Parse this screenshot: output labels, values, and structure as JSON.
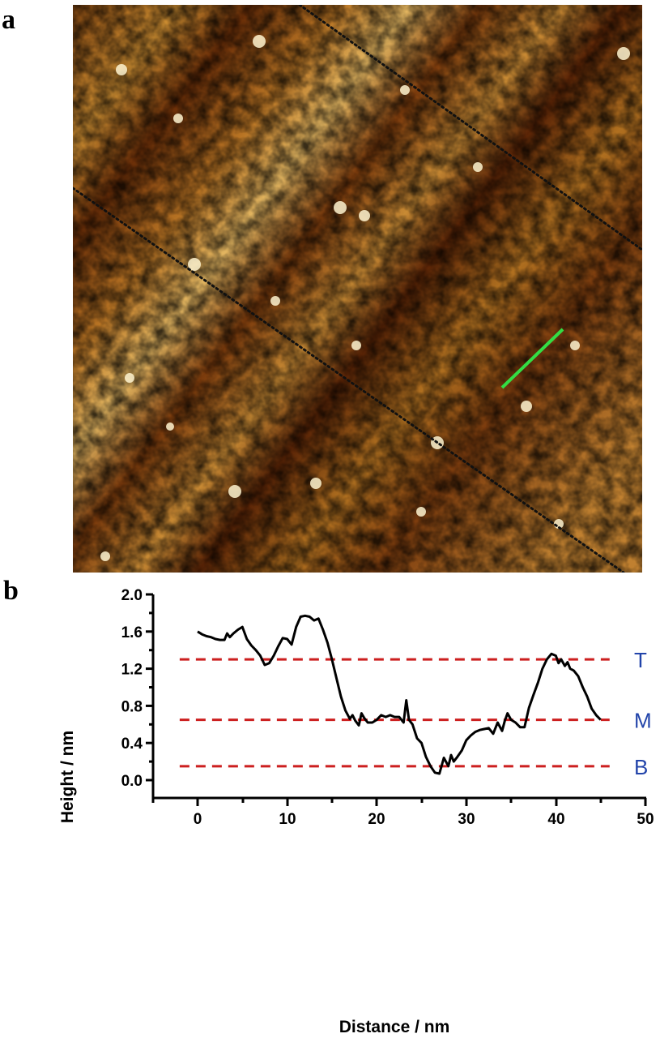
{
  "panels": {
    "a": {
      "label": "a",
      "image_description": "AFM height image, brown-gold colormap, with two dotted diagonal lines and a short green line-profile marker",
      "colormap": [
        "#3a1200",
        "#7a3a0a",
        "#b8741e",
        "#e0b050",
        "#fff2c8"
      ],
      "profile_line_color": "#33dd44",
      "dotted_line_color": "#111111"
    },
    "b": {
      "label": "b"
    }
  },
  "chart_data": {
    "type": "line",
    "title": "",
    "xlabel": "Distance / nm",
    "ylabel": "Height / nm",
    "xlim": [
      -5,
      50
    ],
    "ylim": [
      -0.1,
      2.0
    ],
    "xticks": [
      0,
      10,
      20,
      30,
      40,
      50
    ],
    "xtick_labels": [
      "0",
      "10",
      "20",
      "30",
      "40",
      "50"
    ],
    "yticks": [
      0.0,
      0.4,
      0.8,
      1.2,
      1.6,
      2.0
    ],
    "ytick_labels": [
      "0.0",
      "0.4",
      "0.8",
      "1.2",
      "1.6",
      "2.0"
    ],
    "grid": false,
    "legend": null,
    "series": [
      {
        "name": "height profile",
        "color": "#000000",
        "x": [
          0,
          0.5,
          1,
          1.5,
          2,
          2.5,
          3,
          3.3,
          3.6,
          4,
          4.5,
          5,
          5.5,
          6,
          6.5,
          7,
          7.5,
          8,
          8.5,
          9,
          9.5,
          10,
          10.5,
          11,
          11.5,
          12,
          12.5,
          13,
          13.5,
          14,
          14.5,
          15,
          15.5,
          16,
          16.5,
          17,
          17.3,
          17.6,
          18,
          18.3,
          18.6,
          19,
          19.5,
          20,
          20.5,
          21,
          21.5,
          22,
          22.5,
          23,
          23.3,
          23.6,
          24,
          24.5,
          25,
          25.5,
          26,
          26.5,
          27,
          27.5,
          28,
          28.3,
          28.6,
          29,
          29.5,
          30,
          30.5,
          31,
          31.5,
          32,
          32.5,
          33,
          33.5,
          34,
          34.3,
          34.6,
          35,
          35.5,
          36,
          36.5,
          37,
          37.5,
          38,
          38.5,
          39,
          39.5,
          40,
          40.3,
          40.6,
          41,
          41.3,
          41.6,
          42,
          42.5,
          43,
          43.5,
          44,
          44.5,
          45
        ],
        "y": [
          1.6,
          1.57,
          1.55,
          1.54,
          1.52,
          1.51,
          1.51,
          1.58,
          1.54,
          1.58,
          1.62,
          1.65,
          1.52,
          1.45,
          1.4,
          1.34,
          1.24,
          1.26,
          1.34,
          1.44,
          1.53,
          1.52,
          1.46,
          1.65,
          1.76,
          1.77,
          1.76,
          1.72,
          1.74,
          1.62,
          1.48,
          1.3,
          1.1,
          0.9,
          0.75,
          0.66,
          0.7,
          0.64,
          0.59,
          0.72,
          0.67,
          0.62,
          0.62,
          0.65,
          0.7,
          0.68,
          0.7,
          0.68,
          0.68,
          0.62,
          0.86,
          0.65,
          0.6,
          0.45,
          0.4,
          0.25,
          0.15,
          0.08,
          0.07,
          0.24,
          0.15,
          0.27,
          0.2,
          0.25,
          0.32,
          0.43,
          0.48,
          0.52,
          0.54,
          0.55,
          0.56,
          0.5,
          0.62,
          0.53,
          0.64,
          0.72,
          0.65,
          0.62,
          0.57,
          0.57,
          0.78,
          0.92,
          1.05,
          1.2,
          1.3,
          1.36,
          1.34,
          1.26,
          1.3,
          1.23,
          1.27,
          1.2,
          1.18,
          1.12,
          1.0,
          0.9,
          0.77,
          0.7,
          0.65
        ]
      }
    ],
    "reference_lines": [
      {
        "label": "T",
        "y": 1.3,
        "style": "dashed",
        "color": "#cc1f1f",
        "x_range": [
          -2,
          46
        ]
      },
      {
        "label": "M",
        "y": 0.65,
        "style": "dashed",
        "color": "#cc1f1f",
        "x_range": [
          -2,
          46
        ]
      },
      {
        "label": "B",
        "y": 0.15,
        "style": "dashed",
        "color": "#cc1f1f",
        "x_range": [
          -2,
          46
        ]
      }
    ],
    "annotation_color": "#2244aa"
  }
}
